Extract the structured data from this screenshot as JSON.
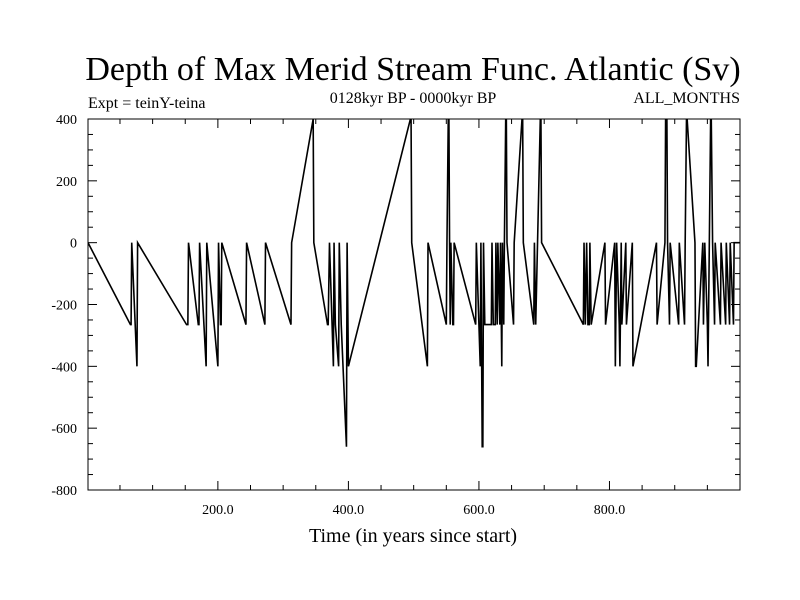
{
  "chart_data": {
    "type": "bar",
    "title": "Depth of Max Merid Stream Func. Atlantic (Sv)",
    "subtitle_left": "Expt = teinY-teina",
    "subtitle_center": "0128kyr BP - 0000kyr BP",
    "subtitle_right": "ALL_MONTHS",
    "xlabel": "Time (in years since start)",
    "ylabel": "",
    "xlim": [
      1,
      1000
    ],
    "ylim": [
      -800,
      400
    ],
    "x_ticks": [
      200,
      400,
      600,
      800
    ],
    "x_tick_labels": [
      "200.0",
      "400.0",
      "600.0",
      "800.0"
    ],
    "y_ticks": [
      -800,
      -600,
      -400,
      -200,
      0,
      200,
      400
    ],
    "y_tick_labels": [
      "-800",
      "-600",
      "-400",
      "-200",
      "0",
      "200",
      "400"
    ],
    "grid": false,
    "series": [
      {
        "x": [
          66,
          67,
          68,
          76,
          77,
          152,
          153,
          154,
          155,
          170,
          171,
          172,
          182,
          183,
          200,
          201,
          204,
          205,
          206,
          243,
          244,
          272,
          273,
          312,
          313,
          346,
          347,
          368,
          369,
          371,
          377,
          378,
          380,
          385,
          386,
          389,
          397,
          398,
          400,
          495,
          496,
          497,
          521,
          522,
          550,
          551,
          553,
          554,
          555,
          556,
          557,
          560,
          561,
          562,
          595,
          596,
          602,
          603,
          605,
          606,
          607,
          609,
          619,
          620,
          622,
          625,
          626,
          628,
          629,
          632,
          633,
          635,
          636,
          638,
          639,
          641,
          642,
          643,
          653,
          654,
          666,
          667,
          668,
          684,
          685,
          687,
          694,
          695,
          696,
          760,
          761,
          763,
          765,
          767,
          769,
          770,
          772,
          793,
          794,
          808,
          809,
          811,
          815,
          816,
          818,
          819,
          825,
          826,
          835,
          836,
          872,
          873,
          885,
          886,
          888,
          889,
          892,
          893,
          906,
          907,
          915,
          916,
          918,
          919,
          931,
          932,
          933,
          943,
          944,
          946,
          950,
          951,
          953,
          955,
          956,
          958,
          961,
          962,
          970,
          971,
          978,
          979,
          984,
          985,
          990,
          991
        ],
        "y": [
          -265,
          -265,
          0,
          -400,
          0,
          -265,
          -265,
          -265,
          0,
          -265,
          -265,
          0,
          -400,
          0,
          -400,
          0,
          -265,
          -265,
          0,
          -265,
          0,
          -265,
          0,
          -265,
          0,
          400,
          0,
          -265,
          -265,
          0,
          -400,
          0,
          -265,
          -400,
          0,
          -265,
          -660,
          0,
          -400,
          400,
          400,
          0,
          -400,
          0,
          -265,
          0,
          400,
          400,
          0,
          -265,
          0,
          -265,
          -265,
          0,
          -265,
          0,
          -400,
          0,
          -660,
          -660,
          0,
          -265,
          -265,
          0,
          -265,
          -265,
          0,
          -265,
          0,
          -265,
          0,
          -400,
          0,
          -265,
          0,
          400,
          400,
          0,
          -265,
          0,
          400,
          400,
          0,
          -265,
          0,
          -265,
          400,
          400,
          0,
          -265,
          0,
          -265,
          0,
          -265,
          -265,
          0,
          -265,
          0,
          -265,
          0,
          -400,
          0,
          -265,
          -400,
          0,
          -265,
          0,
          -265,
          0,
          -400,
          0,
          -265,
          0,
          400,
          400,
          0,
          -265,
          0,
          -265,
          0,
          -265,
          0,
          400,
          400,
          0,
          -400,
          -400,
          0,
          -265,
          0,
          -265,
          -400,
          0,
          400,
          400,
          0,
          -265,
          0,
          -265,
          0,
          -265,
          0,
          -265,
          0,
          -265,
          0
        ]
      }
    ]
  }
}
